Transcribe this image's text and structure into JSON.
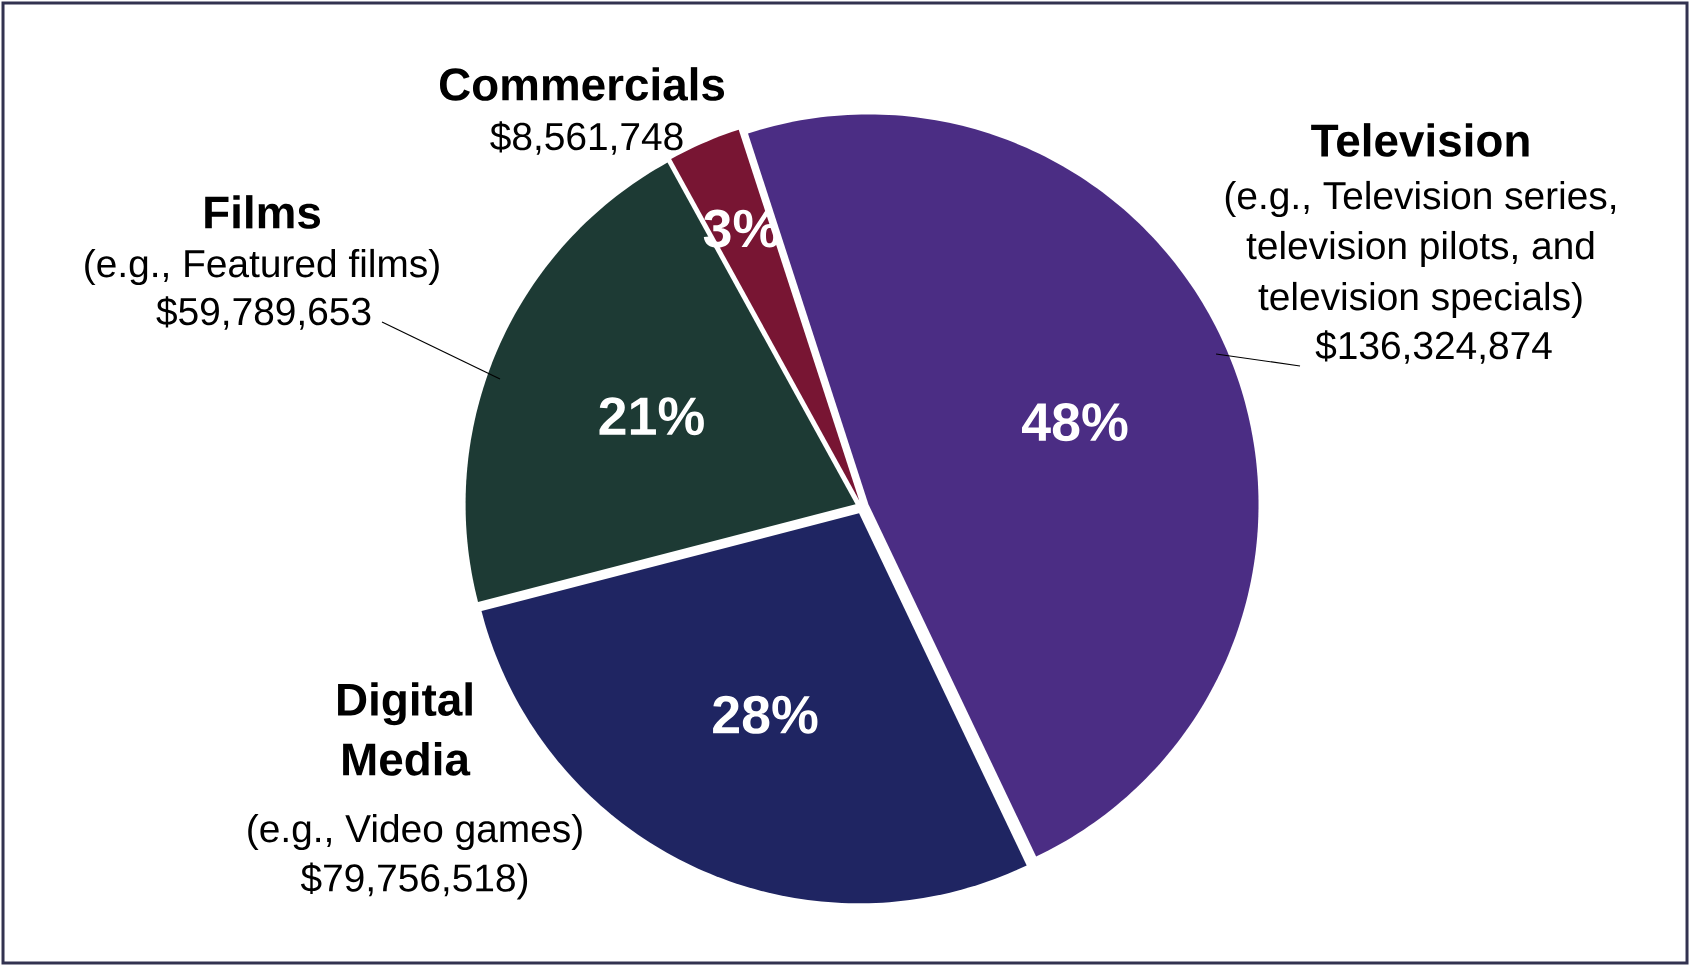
{
  "chart_data": {
    "type": "pie",
    "categories": [
      "Television",
      "Digital Media",
      "Films",
      "Commercials"
    ],
    "values": [
      47.93,
      28.04,
      21.02,
      3.01
    ],
    "colors": [
      "#4b2d84",
      "#1f2562",
      "#1d3a34",
      "#781533"
    ],
    "value_labels": [
      "48%",
      "28%",
      "21%",
      "3%"
    ],
    "annotations": [
      "(e.g., Television series,",
      "television pilots, and",
      "television specials)",
      "$136,324,874",
      "(e.g., Video games)",
      "$79,756,518)",
      "(e.g., Featured films)",
      "$59,789,653",
      "$8,561,748"
    ]
  }
}
